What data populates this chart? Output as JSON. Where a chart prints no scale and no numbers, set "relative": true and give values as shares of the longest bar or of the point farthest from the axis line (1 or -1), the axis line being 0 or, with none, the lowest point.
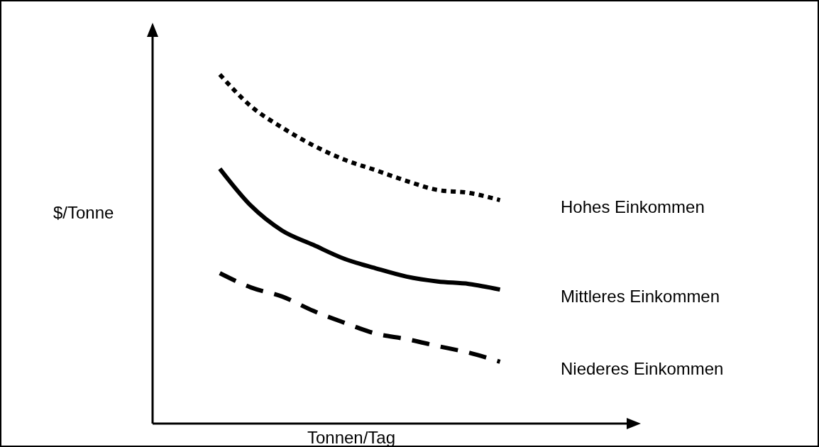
{
  "chart_data": {
    "type": "line",
    "relative": true,
    "xlabel": "Tonnen/Tag",
    "ylabel": "$/Tonne",
    "categories": [
      null,
      null,
      null,
      null,
      null,
      null,
      null,
      null,
      null,
      null,
      null,
      null,
      null,
      null,
      null,
      null
    ],
    "series": [
      {
        "name": "Hohes Einkommen",
        "color": "#000000",
        "line_style": "dotted",
        "values": [
          null,
          null,
          1.0,
          0.909,
          0.848,
          0.797,
          0.756,
          0.726,
          0.695,
          0.669,
          0.661,
          0.64,
          null,
          null,
          null,
          null
        ]
      },
      {
        "name": "Mittleres Einkommen",
        "color": "#000000",
        "line_style": "solid",
        "values": [
          null,
          null,
          0.73,
          0.624,
          0.553,
          0.512,
          0.472,
          0.445,
          0.421,
          0.407,
          0.4,
          0.384,
          null,
          null,
          null,
          null
        ]
      },
      {
        "name": "Niederes Einkommen",
        "color": "#000000",
        "line_style": "dashed",
        "values": [
          null,
          null,
          0.431,
          0.39,
          0.364,
          0.323,
          0.289,
          0.258,
          0.242,
          0.222,
          0.203,
          0.177,
          null,
          null,
          null,
          null
        ]
      }
    ]
  }
}
